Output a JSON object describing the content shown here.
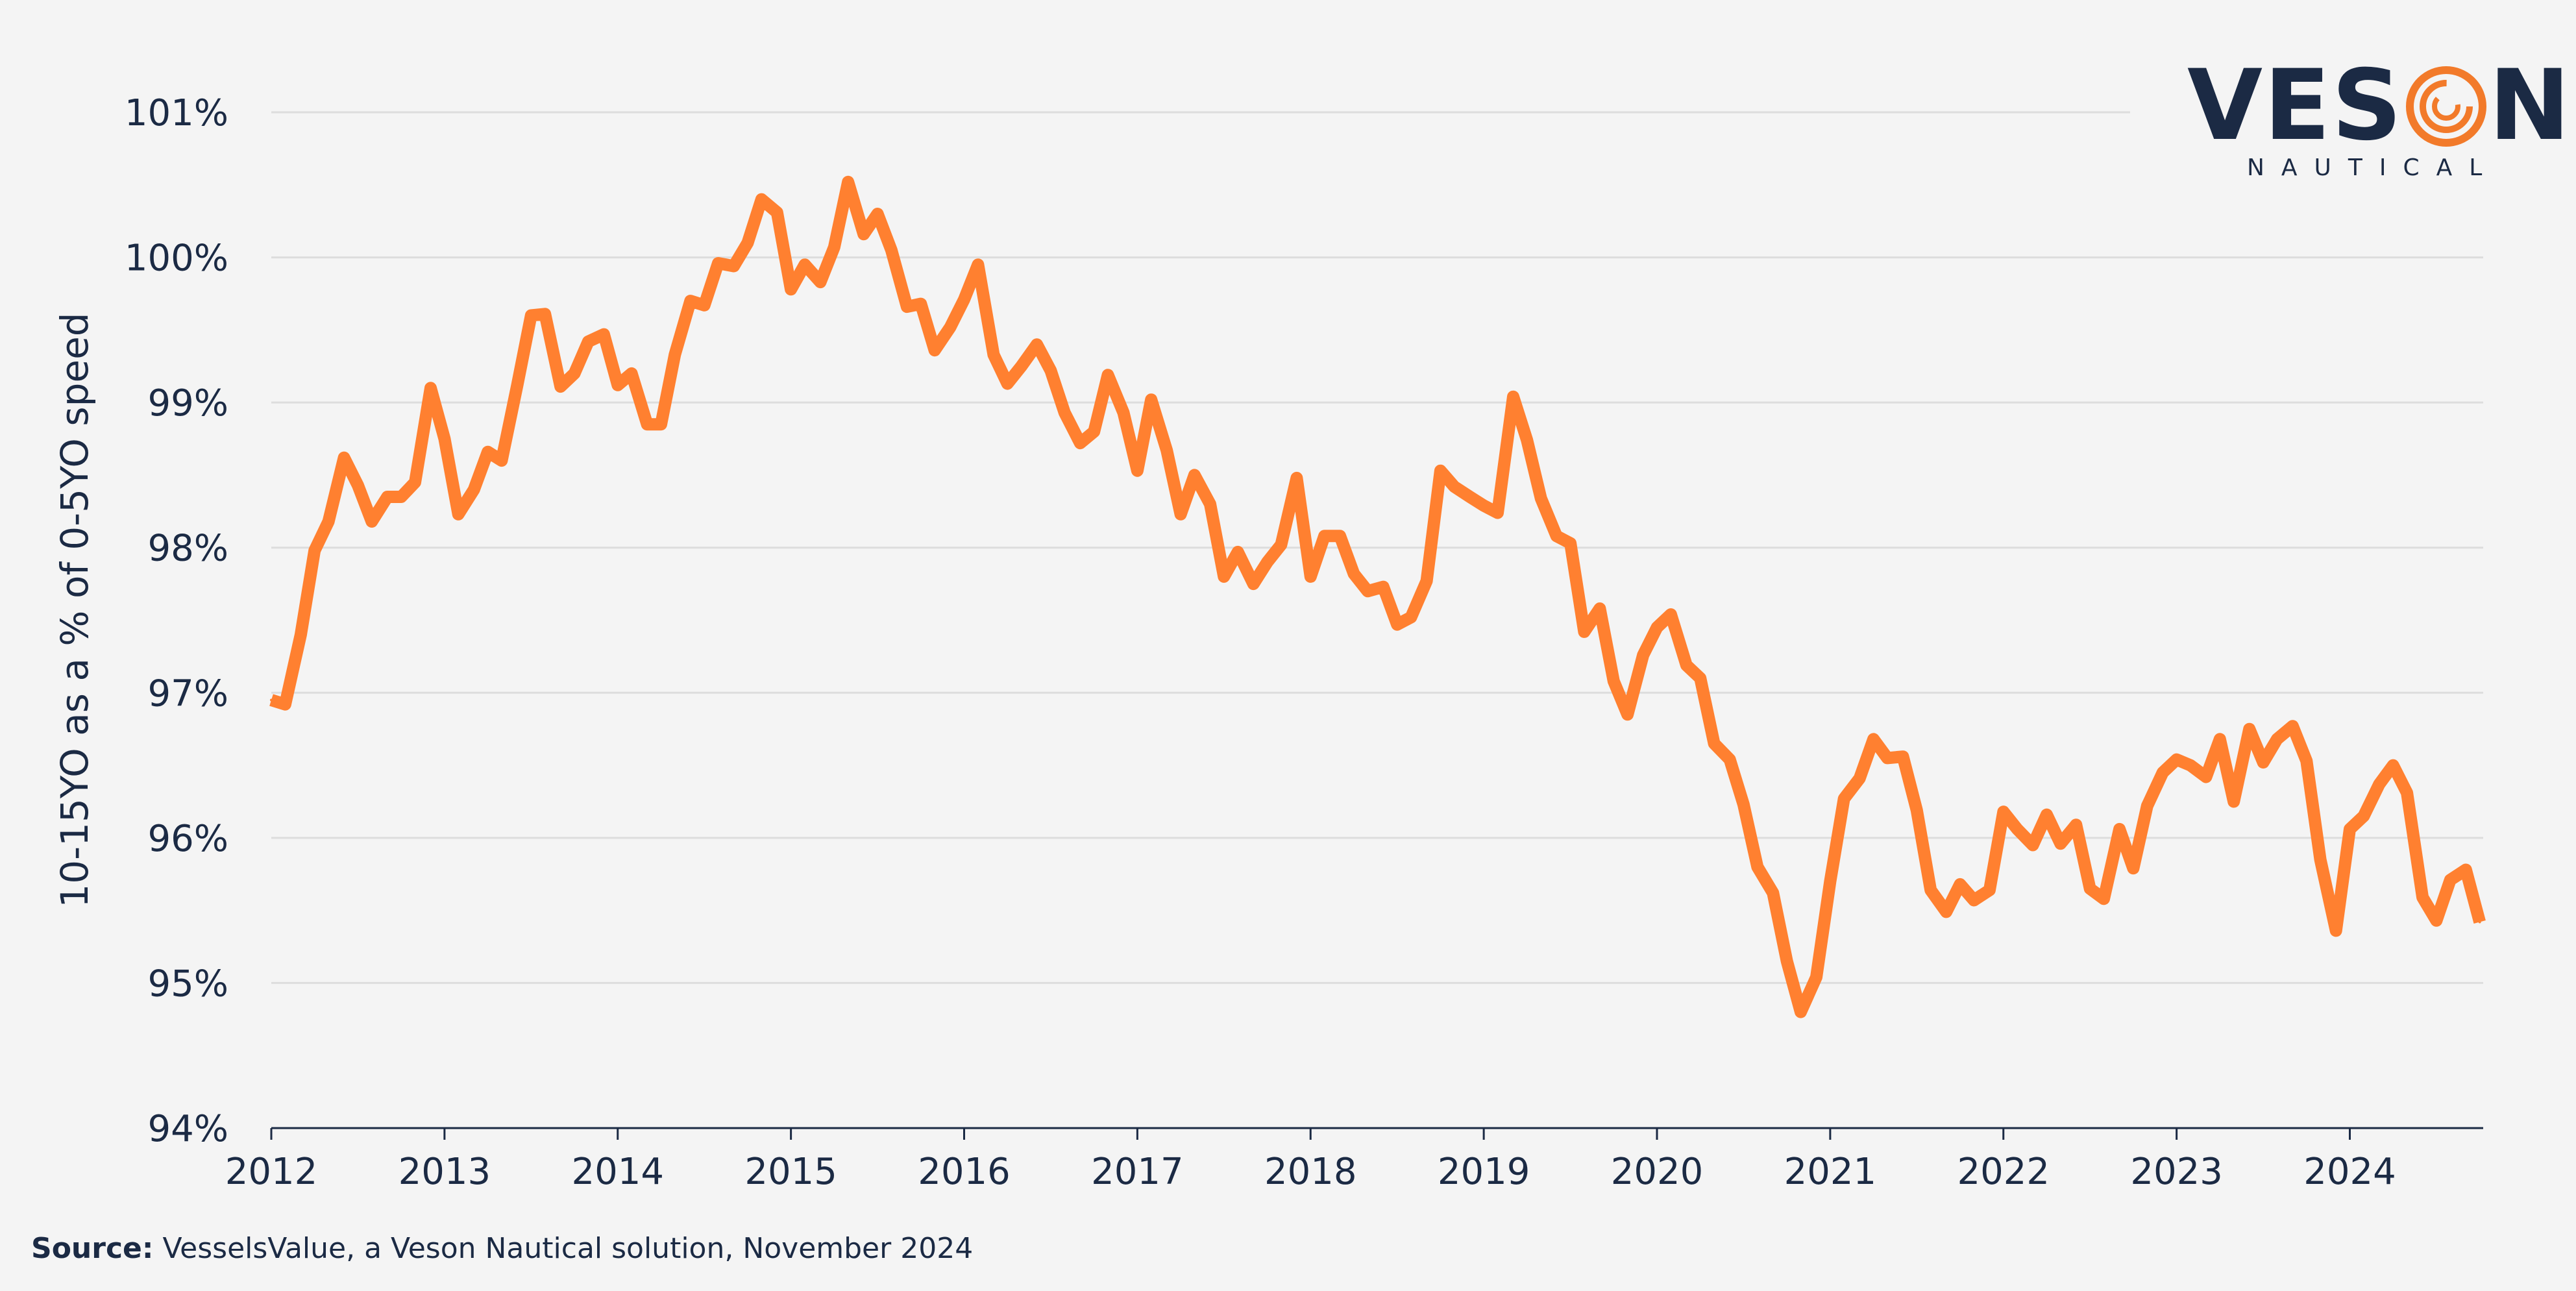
{
  "logo": {
    "brand": "VES",
    "brand_end": "N",
    "sub": "NAUTICAL"
  },
  "source": {
    "label": "Source:",
    "text": "VesselsValue, a Veson Nautical solution, November 2024"
  },
  "colors": {
    "line": "#ff8030",
    "text": "#1b2a44",
    "grid": "#dddddd",
    "background": "#f4f4f4"
  },
  "chart_data": {
    "type": "line",
    "title": "",
    "xlabel": "",
    "ylabel": "10-15YO as a % of 0-5YO speed",
    "ylim": [
      94,
      101
    ],
    "xlim": [
      2012,
      2024.77
    ],
    "y_ticks": [
      "94%",
      "95%",
      "96%",
      "97%",
      "98%",
      "99%",
      "100%",
      "101%"
    ],
    "x_ticks": [
      "2012",
      "2013",
      "2014",
      "2015",
      "2016",
      "2017",
      "2018",
      "2019",
      "2020",
      "2021",
      "2022",
      "2023",
      "2024"
    ],
    "grid": true,
    "legend": "none",
    "series": [
      {
        "x": [
          2012.0,
          2012.08,
          2012.17,
          2012.25,
          2012.33,
          2012.42,
          2012.5,
          2012.58,
          2012.67,
          2012.75,
          2012.83,
          2012.92,
          2013.0,
          2013.08,
          2013.17,
          2013.25,
          2013.33,
          2013.42,
          2013.5,
          2013.58,
          2013.67,
          2013.75,
          2013.83,
          2013.92,
          2014.0,
          2014.08,
          2014.17,
          2014.25,
          2014.33,
          2014.42,
          2014.5,
          2014.58,
          2014.67,
          2014.75,
          2014.83,
          2014.92,
          2015.0,
          2015.08,
          2015.17,
          2015.25,
          2015.33,
          2015.42,
          2015.5,
          2015.58,
          2015.67,
          2015.75,
          2015.83,
          2015.92,
          2016.0,
          2016.08,
          2016.17,
          2016.25,
          2016.33,
          2016.42,
          2016.5,
          2016.58,
          2016.67,
          2016.75,
          2016.83,
          2016.92,
          2017.0,
          2017.08,
          2017.17,
          2017.25,
          2017.33,
          2017.42,
          2017.5,
          2017.58,
          2017.67,
          2017.75,
          2017.83,
          2017.92,
          2018.0,
          2018.08,
          2018.17,
          2018.25,
          2018.33,
          2018.42,
          2018.5,
          2018.58,
          2018.67,
          2018.75,
          2018.83,
          2018.92,
          2019.0,
          2019.08,
          2019.17,
          2019.25,
          2019.33,
          2019.42,
          2019.5,
          2019.58,
          2019.67,
          2019.75,
          2019.83,
          2019.92,
          2020.0,
          2020.08,
          2020.17,
          2020.25,
          2020.33,
          2020.42,
          2020.5,
          2020.58,
          2020.67,
          2020.75,
          2020.83,
          2020.92,
          2021.0,
          2021.08,
          2021.17,
          2021.25,
          2021.33,
          2021.42,
          2021.5,
          2021.58,
          2021.67,
          2021.75,
          2021.83,
          2021.92,
          2022.0,
          2022.08,
          2022.17,
          2022.25,
          2022.33,
          2022.42,
          2022.5,
          2022.58,
          2022.67,
          2022.75,
          2022.83,
          2022.92,
          2023.0,
          2023.08,
          2023.17,
          2023.25,
          2023.33,
          2023.42,
          2023.5,
          2023.58,
          2023.67,
          2023.75,
          2023.83,
          2023.92,
          2024.0,
          2024.08,
          2024.17,
          2024.25,
          2024.33,
          2024.42,
          2024.5,
          2024.58,
          2024.67,
          2024.75
        ],
        "values": [
          96.95,
          96.92,
          97.4,
          97.98,
          98.18,
          98.62,
          98.43,
          98.18,
          98.35,
          98.35,
          98.45,
          99.1,
          98.75,
          98.23,
          98.4,
          98.66,
          98.6,
          99.12,
          99.6,
          99.61,
          99.11,
          99.2,
          99.42,
          99.47,
          99.12,
          99.2,
          98.85,
          98.85,
          99.33,
          99.7,
          99.67,
          99.96,
          99.94,
          100.1,
          100.4,
          100.31,
          99.78,
          99.95,
          99.83,
          100.07,
          100.52,
          100.16,
          100.3,
          100.05,
          99.66,
          99.68,
          99.36,
          99.52,
          99.71,
          99.95,
          99.33,
          99.13,
          99.25,
          99.4,
          99.22,
          98.93,
          98.72,
          98.8,
          99.19,
          98.93,
          98.53,
          99.02,
          98.67,
          98.23,
          98.5,
          98.3,
          97.8,
          97.97,
          97.75,
          97.9,
          98.02,
          98.48,
          97.8,
          98.08,
          98.08,
          97.82,
          97.7,
          97.73,
          97.47,
          97.52,
          97.77,
          98.53,
          98.42,
          98.35,
          98.29,
          98.24,
          99.04,
          98.74,
          98.34,
          98.08,
          98.03,
          97.42,
          97.58,
          97.08,
          96.85,
          97.26,
          97.45,
          97.54,
          97.19,
          97.1,
          96.65,
          96.54,
          96.23,
          95.8,
          95.62,
          95.15,
          94.8,
          95.04,
          95.7,
          96.27,
          96.41,
          96.68,
          96.55,
          96.56,
          96.19,
          95.64,
          95.49,
          95.68,
          95.57,
          95.64,
          96.18,
          96.06,
          95.95,
          96.16,
          95.96,
          96.09,
          95.65,
          95.58,
          96.06,
          95.79,
          96.22,
          96.45,
          96.54,
          96.5,
          96.42,
          96.68,
          96.25,
          96.75,
          96.52,
          96.68,
          96.77,
          96.53,
          95.85,
          95.36,
          96.06,
          96.15,
          96.37,
          96.5,
          96.31,
          95.59,
          95.43,
          95.71,
          95.78,
          95.42
        ]
      }
    ]
  }
}
